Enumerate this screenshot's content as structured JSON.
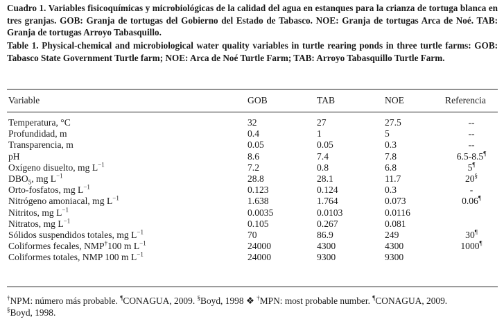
{
  "caption_es": {
    "label": "Cuadro 1.",
    "text": "Variables fisicoquímicas y microbiológicas de la calidad del agua en estanques para la crianza de tortuga blanca en tres granjas. GOB: Granja de tortugas del Gobierno del Estado de Tabasco. NOE: Granja de tortugas Arca de Noé. TAB: Granja de tortugas Arroyo Tabasquillo."
  },
  "caption_en": {
    "label": "Table 1.",
    "text": "Physical-chemical and microbiological water quality variables in turtle rearing ponds in three turtle farms: GOB: Tabasco State Government Turtle farm; NOE: Arca de Noé Turtle Farm; TAB: Arroyo Tabasquillo Turtle Farm."
  },
  "headers": {
    "variable": "Variable",
    "gob": "GOB",
    "tab": "TAB",
    "noe": "NOE",
    "ref": "Referencia"
  },
  "rows": [
    {
      "var": "Temperatura, °C",
      "gob": "32",
      "tab": "27",
      "noe": "27.5",
      "ref": "--",
      "ref_sup": ""
    },
    {
      "var": "Profundidad, m",
      "gob": "0.4",
      "tab": "1",
      "noe": "5",
      "ref": "--",
      "ref_sup": ""
    },
    {
      "var": "Transparencia, m",
      "gob": "0.05",
      "tab": "0.05",
      "noe": "0.3",
      "ref": "--",
      "ref_sup": ""
    },
    {
      "var": "pH",
      "gob": "8.6",
      "tab": "7.4",
      "noe": "7.8",
      "ref": "6.5-8.5",
      "ref_sup": "¶"
    },
    {
      "var_pre": "Oxígeno disuelto, mg L",
      "var_sup": "−1",
      "gob": "7.2",
      "tab": "0.8",
      "noe": "6.8",
      "ref": "5",
      "ref_sup": "¶"
    },
    {
      "var_pre": "DBO",
      "var_sub": "5",
      "var_mid": ", mg L",
      "var_sup": "−1",
      "gob": "28.8",
      "tab": "28.1",
      "noe": "11.7",
      "ref": "20",
      "ref_sup": "§"
    },
    {
      "var_pre": "Orto-fosfatos, mg L",
      "var_sup": "−1",
      "gob": "0.123",
      "tab": "0.124",
      "noe": "0.3",
      "ref": "-",
      "ref_sup": ""
    },
    {
      "var_pre": "Nitrógeno amoniacal, mg L",
      "var_sup": "−1",
      "gob": "1.638",
      "tab": "1.764",
      "noe": "0.073",
      "ref": "0.06",
      "ref_sup": "¶"
    },
    {
      "var_pre": "Nitritos, mg L",
      "var_sup": "−1",
      "gob": "0.0035",
      "tab": "0.0103",
      "noe": "0.0116",
      "ref": "",
      "ref_sup": ""
    },
    {
      "var_pre": "Nitratos, mg L",
      "var_sup": "−1",
      "gob": "0.105",
      "tab": "0.267",
      "noe": "0.081",
      "ref": "",
      "ref_sup": ""
    },
    {
      "var_pre": "Sólidos suspendidos totales, mg L",
      "var_sup": "−1",
      "gob": "70",
      "tab": "86.9",
      "noe": "249",
      "ref": "30",
      "ref_sup": "¶"
    },
    {
      "var_pre": "Coliformes fecales, NMP",
      "var_sup0": "†",
      "var_mid": "100 m L",
      "var_sup": "−1",
      "gob": "24000",
      "tab": "4300",
      "noe": "4300",
      "ref": "1000",
      "ref_sup": "¶"
    },
    {
      "var_pre": "Coliformes totales, NMP 100 m L",
      "var_sup": "−1",
      "gob": "24000",
      "tab": "9300",
      "noe": "9300",
      "ref": "",
      "ref_sup": ""
    }
  ],
  "footnote": {
    "m1": "†",
    "t1": "NPM: número más probable.  ",
    "m2": "¶",
    "t2": "CONAGUA, 2009. ",
    "m3": "§",
    "t3": "Boyd, 1998 ❖ ",
    "m4": "†",
    "t4": "MPN: most probable number. ",
    "m5": "¶",
    "t5": "CONAGUA, 2009. ",
    "m6": "§",
    "t6": "Boyd, 1998."
  }
}
